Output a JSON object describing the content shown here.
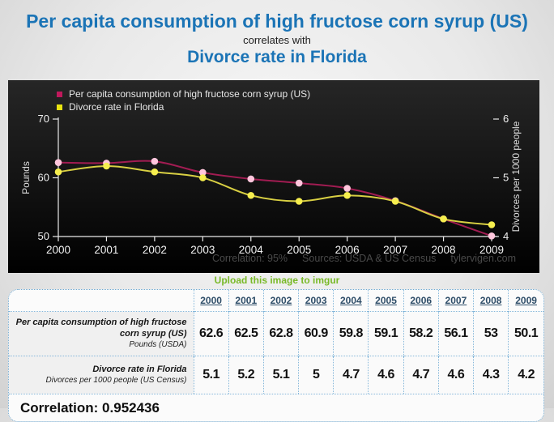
{
  "title": {
    "line1": "Per capita consumption of high fructose corn syrup (US)",
    "connector": "correlates with",
    "line2": "Divorce rate in Florida"
  },
  "accent_color": "#1b74b6",
  "links": {
    "imgur_label": "Upload this image to imgur"
  },
  "chart": {
    "footer": {
      "correlation_label": "Correlation: 95%",
      "sources_label": "Sources: USDA & US Census",
      "site_label": "tylervigen.com"
    }
  },
  "chart_data": {
    "type": "line",
    "title": "",
    "x": [
      2000,
      2001,
      2002,
      2003,
      2004,
      2005,
      2006,
      2007,
      2008,
      2009
    ],
    "series": [
      {
        "name": "Per capita consumption of high fructose corn syrup (US)",
        "axis": "left",
        "values": [
          62.6,
          62.5,
          62.8,
          60.9,
          59.8,
          59.1,
          58.2,
          56.1,
          53,
          50.1
        ],
        "line_color": "#a11c52",
        "marker_color": "#ffc6dc",
        "legend_color": "#c0195c"
      },
      {
        "name": "Divorce rate in Florida",
        "axis": "right",
        "values": [
          5.1,
          5.2,
          5.1,
          5,
          4.7,
          4.6,
          4.7,
          4.6,
          4.3,
          4.2
        ],
        "line_color": "#d9d043",
        "marker_color": "#f6ee4e",
        "legend_color": "#e9e410"
      }
    ],
    "left_axis": {
      "label": "Pounds",
      "ticks": [
        50,
        60,
        70
      ],
      "range": [
        50,
        70
      ]
    },
    "right_axis": {
      "label": "Divorces per 1000 people",
      "ticks": [
        4,
        5,
        6
      ],
      "range": [
        4,
        6
      ]
    },
    "legend_position": "top-left",
    "grid": false
  },
  "table": {
    "years": [
      "2000",
      "2001",
      "2002",
      "2003",
      "2004",
      "2005",
      "2006",
      "2007",
      "2008",
      "2009"
    ],
    "rows": [
      {
        "label": "Per capita consumption of high fructose corn syrup (US)",
        "sublabel": "Pounds (USDA)",
        "values": [
          "62.6",
          "62.5",
          "62.8",
          "60.9",
          "59.8",
          "59.1",
          "58.2",
          "56.1",
          "53",
          "50.1"
        ]
      },
      {
        "label": "Divorce rate in Florida",
        "sublabel": "Divorces per 1000 people (US Census)",
        "values": [
          "5.1",
          "5.2",
          "5.1",
          "5",
          "4.7",
          "4.6",
          "4.7",
          "4.6",
          "4.3",
          "4.2"
        ]
      }
    ],
    "correlation_label": "Correlation: 0.952436"
  }
}
